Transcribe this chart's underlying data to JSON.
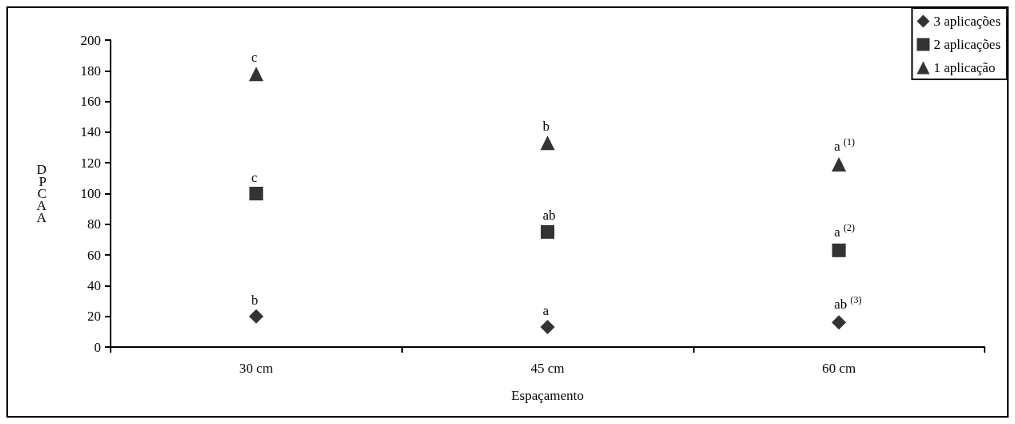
{
  "chart_data": {
    "type": "scatter",
    "xlabel": "Espaçamento",
    "ylabel": "DPCAA",
    "categories": [
      "30 cm",
      "45 cm",
      "60 cm"
    ],
    "ylim": [
      0,
      200
    ],
    "yticks": [
      0,
      20,
      40,
      60,
      80,
      100,
      120,
      140,
      160,
      180,
      200
    ],
    "grid": false,
    "legend": "top right",
    "series": [
      {
        "name": "3 aplicações",
        "color": "#000000",
        "marker": "diamond",
        "values": [
          20,
          13,
          16
        ]
      },
      {
        "name": "2 aplicações",
        "color": "#000000",
        "marker": "square",
        "values": [
          100,
          75,
          63
        ]
      },
      {
        "name": "1 aplicação",
        "color": "#000000",
        "marker": "triangle",
        "values": [
          178,
          133,
          119
        ]
      }
    ],
    "annotations": [
      "b",
      "a",
      "ab $^{(3)}$",
      "c",
      "ab",
      "a $^{(2)}$",
      "c",
      "b",
      "a $^{(1)}$"
    ]
  }
}
